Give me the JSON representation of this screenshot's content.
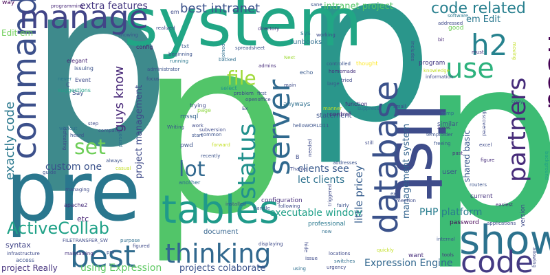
{
  "words": [
    {
      "text": "p",
      "color": "#3e8a8c"
    },
    {
      "text": "p",
      "color": "#52c569"
    },
    {
      "text": "p",
      "color": "#2a968b"
    },
    {
      "text": "p",
      "color": "#3dbc74"
    },
    {
      "text": "pre",
      "color": "#2a778e"
    },
    {
      "text": "system",
      "color": "#21a685"
    },
    {
      "text": "list",
      "color": "#3e4c8a"
    },
    {
      "text": "tables",
      "color": "#1f9a8a"
    },
    {
      "text": "database",
      "color": "#3b528b"
    },
    {
      "text": "show",
      "color": "#2c728e"
    },
    {
      "text": "code",
      "color": "#443a83"
    },
    {
      "text": "server",
      "color": "#30698e"
    },
    {
      "text": "command",
      "color": "#3c508b"
    },
    {
      "text": "manage",
      "color": "#414487"
    },
    {
      "text": "need",
      "color": "#440154"
    },
    {
      "text": "partners",
      "color": "#472c7a"
    },
    {
      "text": "use",
      "color": "#2db27d"
    },
    {
      "text": "h2",
      "color": "#26828e"
    },
    {
      "text": "best",
      "color": "#2f6b8e"
    },
    {
      "text": "thinking",
      "color": "#31688e"
    },
    {
      "text": "status",
      "color": "#21918c"
    },
    {
      "text": "set",
      "color": "#6ece58"
    },
    {
      "text": "lot",
      "color": "#31688e"
    },
    {
      "text": "file",
      "color": "#a0da39"
    },
    {
      "text": "ActiveCollab",
      "color": "#1fa187"
    },
    {
      "text": "code related",
      "color": "#277f8e"
    },
    {
      "text": "best intranet",
      "color": "#3b528b"
    },
    {
      "text": "extra features",
      "color": "#453781"
    },
    {
      "text": "exactly code",
      "color": "#2a788e"
    },
    {
      "text": "guys know",
      "color": "#482878"
    },
    {
      "text": "project management",
      "color": "#3e4a89"
    },
    {
      "text": "custom one",
      "color": "#3b528b"
    },
    {
      "text": "let clients",
      "color": "#2c718e"
    },
    {
      "text": "clients see",
      "color": "#38598c"
    },
    {
      "text": "executable window",
      "color": "#1fa088"
    },
    {
      "text": "little pricey",
      "color": "#365d8d"
    },
    {
      "text": "management system",
      "color": "#33638d"
    },
    {
      "text": "shared basic",
      "color": "#39568c"
    },
    {
      "text": "PHP platform",
      "color": "#287c8e"
    },
    {
      "text": "Expression Engine",
      "color": "#31678e"
    },
    {
      "text": "using Expression",
      "color": "#5ec962"
    },
    {
      "text": "projects colaborate",
      "color": "#3b528b"
    },
    {
      "text": "project Really",
      "color": "#46327e"
    },
    {
      "text": "intranet project",
      "color": "#55c667"
    },
    {
      "text": "Edit em",
      "color": "#6ece58"
    },
    {
      "text": "em Edit",
      "color": "#2a788e"
    },
    {
      "text": "runbooks",
      "color": "#2e6e8e"
    },
    {
      "text": "etc",
      "color": "#482475"
    },
    {
      "text": "syntax",
      "color": "#414487"
    },
    {
      "text": "document",
      "color": "#33638d"
    },
    {
      "text": "configuration",
      "color": "#472d7b"
    },
    {
      "text": "statement",
      "color": "#3b528b"
    },
    {
      "text": "professional",
      "color": "#2a788e"
    },
    {
      "text": "anyways",
      "color": "#2e6f8e"
    },
    {
      "text": "user",
      "color": "#3b528b"
    },
    {
      "text": "current",
      "color": "#46327e"
    },
    {
      "text": "program",
      "color": "#443983"
    },
    {
      "text": "password",
      "color": "#440154"
    },
    {
      "text": "version",
      "color": "#3e4a89"
    },
    {
      "text": "want",
      "color": "#472d7b"
    },
    {
      "text": "good",
      "color": "#6ece58"
    },
    {
      "text": "way",
      "color": "#440154"
    },
    {
      "text": "sys",
      "color": "#2a788e"
    },
    {
      "text": "mssql",
      "color": "#33638d"
    },
    {
      "text": "pwd",
      "color": "#3b528b"
    },
    {
      "text": "trying",
      "color": "#3e4a89"
    },
    {
      "text": "similar",
      "color": "#3e4a89"
    },
    {
      "text": "control",
      "color": "#482878"
    },
    {
      "text": "function",
      "color": "#46327e"
    },
    {
      "text": "Say",
      "color": "#3b528b"
    },
    {
      "text": "page",
      "color": "#8fd744"
    },
    {
      "text": "echo",
      "color": "#38598c"
    },
    {
      "text": "txt",
      "color": "#38598c"
    },
    {
      "text": "config",
      "color": "#482475"
    },
    {
      "text": "em",
      "color": "#3e4a89"
    },
    {
      "text": "select",
      "color": "#21918c"
    },
    {
      "text": "problem",
      "color": "#3e4a89"
    },
    {
      "text": "first",
      "color": "#3b528b"
    },
    {
      "text": "main",
      "color": "#3e4a89"
    },
    {
      "text": "thought",
      "color": "#fde725"
    },
    {
      "text": "Next",
      "color": "#a0da39"
    },
    {
      "text": "elegant",
      "color": "#482475"
    },
    {
      "text": "issuing",
      "color": "#3b528b"
    },
    {
      "text": "Event",
      "color": "#3e4a89"
    },
    {
      "text": "never",
      "color": "#2a788e"
    },
    {
      "text": "C",
      "color": "#3e4a89"
    },
    {
      "text": "suggestions",
      "color": "#1fa187"
    },
    {
      "text": "showing",
      "color": "#3b528b"
    },
    {
      "text": "programming",
      "color": "#482878"
    },
    {
      "text": "realized",
      "color": "#3e4a89"
    },
    {
      "text": "directory",
      "color": "#472d7b"
    },
    {
      "text": "spreadsheet",
      "color": "#3b528b"
    },
    {
      "text": "joined",
      "color": "#2e6e8e"
    },
    {
      "text": "working",
      "color": "#3e4a89"
    },
    {
      "text": "sane",
      "color": "#3b528b"
    },
    {
      "text": "software",
      "color": "#2a788e"
    },
    {
      "text": "addressed",
      "color": "#3e4a89"
    },
    {
      "text": "bit",
      "color": "#482878"
    },
    {
      "text": "must",
      "color": "#472d7b"
    },
    {
      "text": "moving",
      "color": "#c2df23"
    },
    {
      "text": "includes",
      "color": "#3e4a89"
    },
    {
      "text": "knowledge",
      "color": "#c2df23"
    },
    {
      "text": "information",
      "color": "#3e4a89"
    },
    {
      "text": "backed",
      "color": "#2e6e8e"
    },
    {
      "text": "admins",
      "color": "#472d7b"
    },
    {
      "text": "administrator",
      "color": "#3b528b"
    },
    {
      "text": "running",
      "color": "#2a788e"
    },
    {
      "text": "beginning",
      "color": "#3b528b"
    },
    {
      "text": "focus",
      "color": "#3e4a89"
    },
    {
      "text": "homemade",
      "color": "#46327e"
    },
    {
      "text": "tried",
      "color": "#3e4a89"
    },
    {
      "text": "large",
      "color": "#3b528b"
    },
    {
      "text": "controlled",
      "color": "#3b528b"
    },
    {
      "text": "openoffice",
      "color": "#3e4a89"
    },
    {
      "text": "manner",
      "color": "#c2df23"
    },
    {
      "text": "suppress",
      "color": "#2e6e8e"
    },
    {
      "text": "small",
      "color": "#3e4a89"
    },
    {
      "text": "temp",
      "color": "#2e6e8e"
    },
    {
      "text": "areas",
      "color": "#46327e"
    },
    {
      "text": "tempfolder",
      "color": "#3b528b"
    },
    {
      "text": "discovered",
      "color": "#3e4a89"
    },
    {
      "text": "freeing",
      "color": "#3b528b"
    },
    {
      "text": "past",
      "color": "#472d7b"
    },
    {
      "text": "excel",
      "color": "#3e4a89"
    },
    {
      "text": "copy",
      "color": "#3e4a89"
    },
    {
      "text": "background",
      "color": "#1fa187"
    },
    {
      "text": "figure",
      "color": "#472d7b"
    },
    {
      "text": "routers",
      "color": "#3b528b"
    },
    {
      "text": "easiest",
      "color": "#482878"
    },
    {
      "text": "applications",
      "color": "#3e4a89"
    },
    {
      "text": "allowing",
      "color": "#3e4a89"
    },
    {
      "text": "internal",
      "color": "#3b528b"
    },
    {
      "text": "tools",
      "color": "#46327e"
    },
    {
      "text": "urgency",
      "color": "#3e4a89"
    },
    {
      "text": "switches",
      "color": "#2e6e8e"
    },
    {
      "text": "locations",
      "color": "#3e4a89"
    },
    {
      "text": "quickly",
      "color": "#c2df23"
    },
    {
      "text": "issue",
      "color": "#3e4a89"
    },
    {
      "text": "hide",
      "color": "#3e4a89"
    },
    {
      "text": "using",
      "color": "#2e6e8e"
    },
    {
      "text": "displaying",
      "color": "#3e4a89"
    },
    {
      "text": "access",
      "color": "#3b528b"
    },
    {
      "text": "infrastructure",
      "color": "#3e4a89"
    },
    {
      "text": "pm",
      "color": "#3b528b"
    },
    {
      "text": "maintaining",
      "color": "#46327e"
    },
    {
      "text": "FILETRANSFER_SW",
      "color": "#3e4a89"
    },
    {
      "text": "purpose",
      "color": "#2e6e8e"
    },
    {
      "text": "figured",
      "color": "#3e4a89"
    },
    {
      "text": "apache2",
      "color": "#472d7b"
    },
    {
      "text": "managing",
      "color": "#3e4a89"
    },
    {
      "text": "guide",
      "color": "#3b528b"
    },
    {
      "text": "casual",
      "color": "#c2df23"
    },
    {
      "text": "always",
      "color": "#3b528b"
    },
    {
      "text": "defeating",
      "color": "#3e4a89"
    },
    {
      "text": "heard",
      "color": "#3b528b"
    },
    {
      "text": "without",
      "color": "#2e6e8e"
    },
    {
      "text": "step",
      "color": "#3e4a89"
    },
    {
      "text": "company",
      "color": "#3b528b"
    },
    {
      "text": "person",
      "color": "#2e6e8e"
    },
    {
      "text": "Writing",
      "color": "#3b528b"
    },
    {
      "text": "work",
      "color": "#3e4a89"
    },
    {
      "text": "start",
      "color": "#3b528b"
    },
    {
      "text": "subversion",
      "color": "#3e4a89"
    },
    {
      "text": "common",
      "color": "#3b528b"
    },
    {
      "text": "forward",
      "color": "#c2df23"
    },
    {
      "text": "recently",
      "color": "#3b528b"
    },
    {
      "text": "another",
      "color": "#2e6e8e"
    },
    {
      "text": "installed",
      "color": "#3e4a89"
    },
    {
      "text": "handle",
      "color": "#3b528b"
    },
    {
      "text": "following",
      "color": "#3e4a89"
    },
    {
      "text": "fairly",
      "color": "#3b528b"
    },
    {
      "text": "triggered",
      "color": "#3e4a89"
    },
    {
      "text": "exe",
      "color": "#3b528b"
    },
    {
      "text": "mention",
      "color": "#3e4a89"
    },
    {
      "text": "now",
      "color": "#2e6e8e"
    },
    {
      "text": "Thanks",
      "color": "#3e4a89"
    },
    {
      "text": "addresses",
      "color": "#3b528b"
    },
    {
      "text": "still",
      "color": "#3e4a89"
    },
    {
      "text": "needed",
      "color": "#3e4a89"
    },
    {
      "text": "helloWORLD11",
      "color": "#3b528b"
    },
    {
      "text": "B",
      "color": "#3e4a89"
    },
    {
      "text": "Ex",
      "color": "#3e4a89"
    }
  ]
}
